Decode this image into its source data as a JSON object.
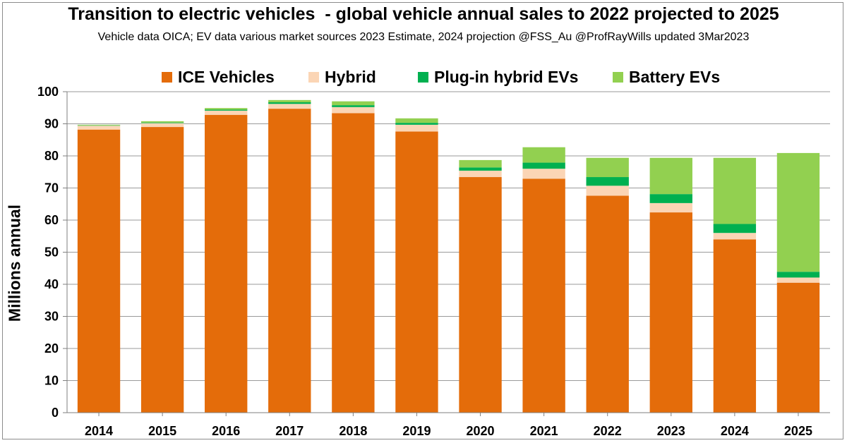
{
  "chart_data": {
    "type": "bar",
    "stacked": true,
    "title": "Transition to electric vehicles  - global vehicle annual sales to 2022 projected to 2025",
    "subtitle": "Vehicle data OICA; EV data various market sources 2023 Estimate, 2024 projection @FSS_Au @ProfRayWills updated 3Mar2023",
    "xlabel": "",
    "ylabel": "Millions annual",
    "ylim": [
      0,
      100
    ],
    "yticks": [
      0,
      10,
      20,
      30,
      40,
      50,
      60,
      70,
      80,
      90,
      100
    ],
    "grid": true,
    "legend_position": "top",
    "categories": [
      "2014",
      "2015",
      "2016",
      "2017",
      "2018",
      "2019",
      "2020",
      "2021",
      "2022",
      "2023",
      "2024",
      "2025"
    ],
    "series": [
      {
        "name": "ICE Vehicles",
        "color": "#e46c0a",
        "values": [
          88.2,
          89.0,
          92.8,
          94.7,
          93.3,
          87.6,
          73.4,
          72.9,
          67.6,
          62.4,
          54.0,
          40.5
        ]
      },
      {
        "name": "Hybrid",
        "color": "#fbd5b5",
        "values": [
          1.2,
          1.2,
          1.3,
          1.5,
          1.9,
          2.1,
          2.0,
          3.1,
          3.1,
          2.9,
          2.0,
          1.6
        ]
      },
      {
        "name": "Plug-in hybrid EVs",
        "color": "#00b050",
        "values": [
          0.1,
          0.2,
          0.3,
          0.5,
          0.6,
          0.6,
          1.0,
          1.9,
          2.7,
          2.8,
          2.8,
          1.8
        ]
      },
      {
        "name": "Battery EVs",
        "color": "#92d050",
        "values": [
          0.2,
          0.4,
          0.5,
          0.7,
          1.2,
          1.4,
          2.3,
          4.8,
          6.0,
          11.3,
          20.6,
          37.0
        ]
      }
    ]
  }
}
